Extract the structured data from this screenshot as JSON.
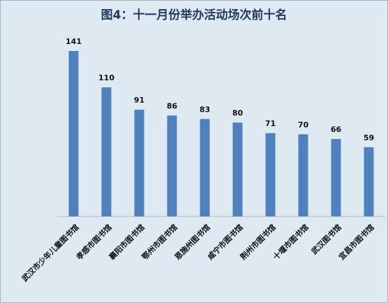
{
  "chart_data": {
    "type": "bar",
    "title": "图4：十一月份举办活动场次前十名",
    "categories": [
      "武汉市少年儿童图书馆",
      "孝感市图书馆",
      "襄阳市图书馆",
      "鄂州市图书馆",
      "恩施州图书馆",
      "咸宁市图书馆",
      "荆州市图书馆",
      "十堰市图书馆",
      "武汉图书馆",
      "宜昌市图书馆"
    ],
    "values": [
      141,
      110,
      91,
      86,
      83,
      80,
      71,
      70,
      66,
      59
    ],
    "color": "#4f81bd"
  }
}
